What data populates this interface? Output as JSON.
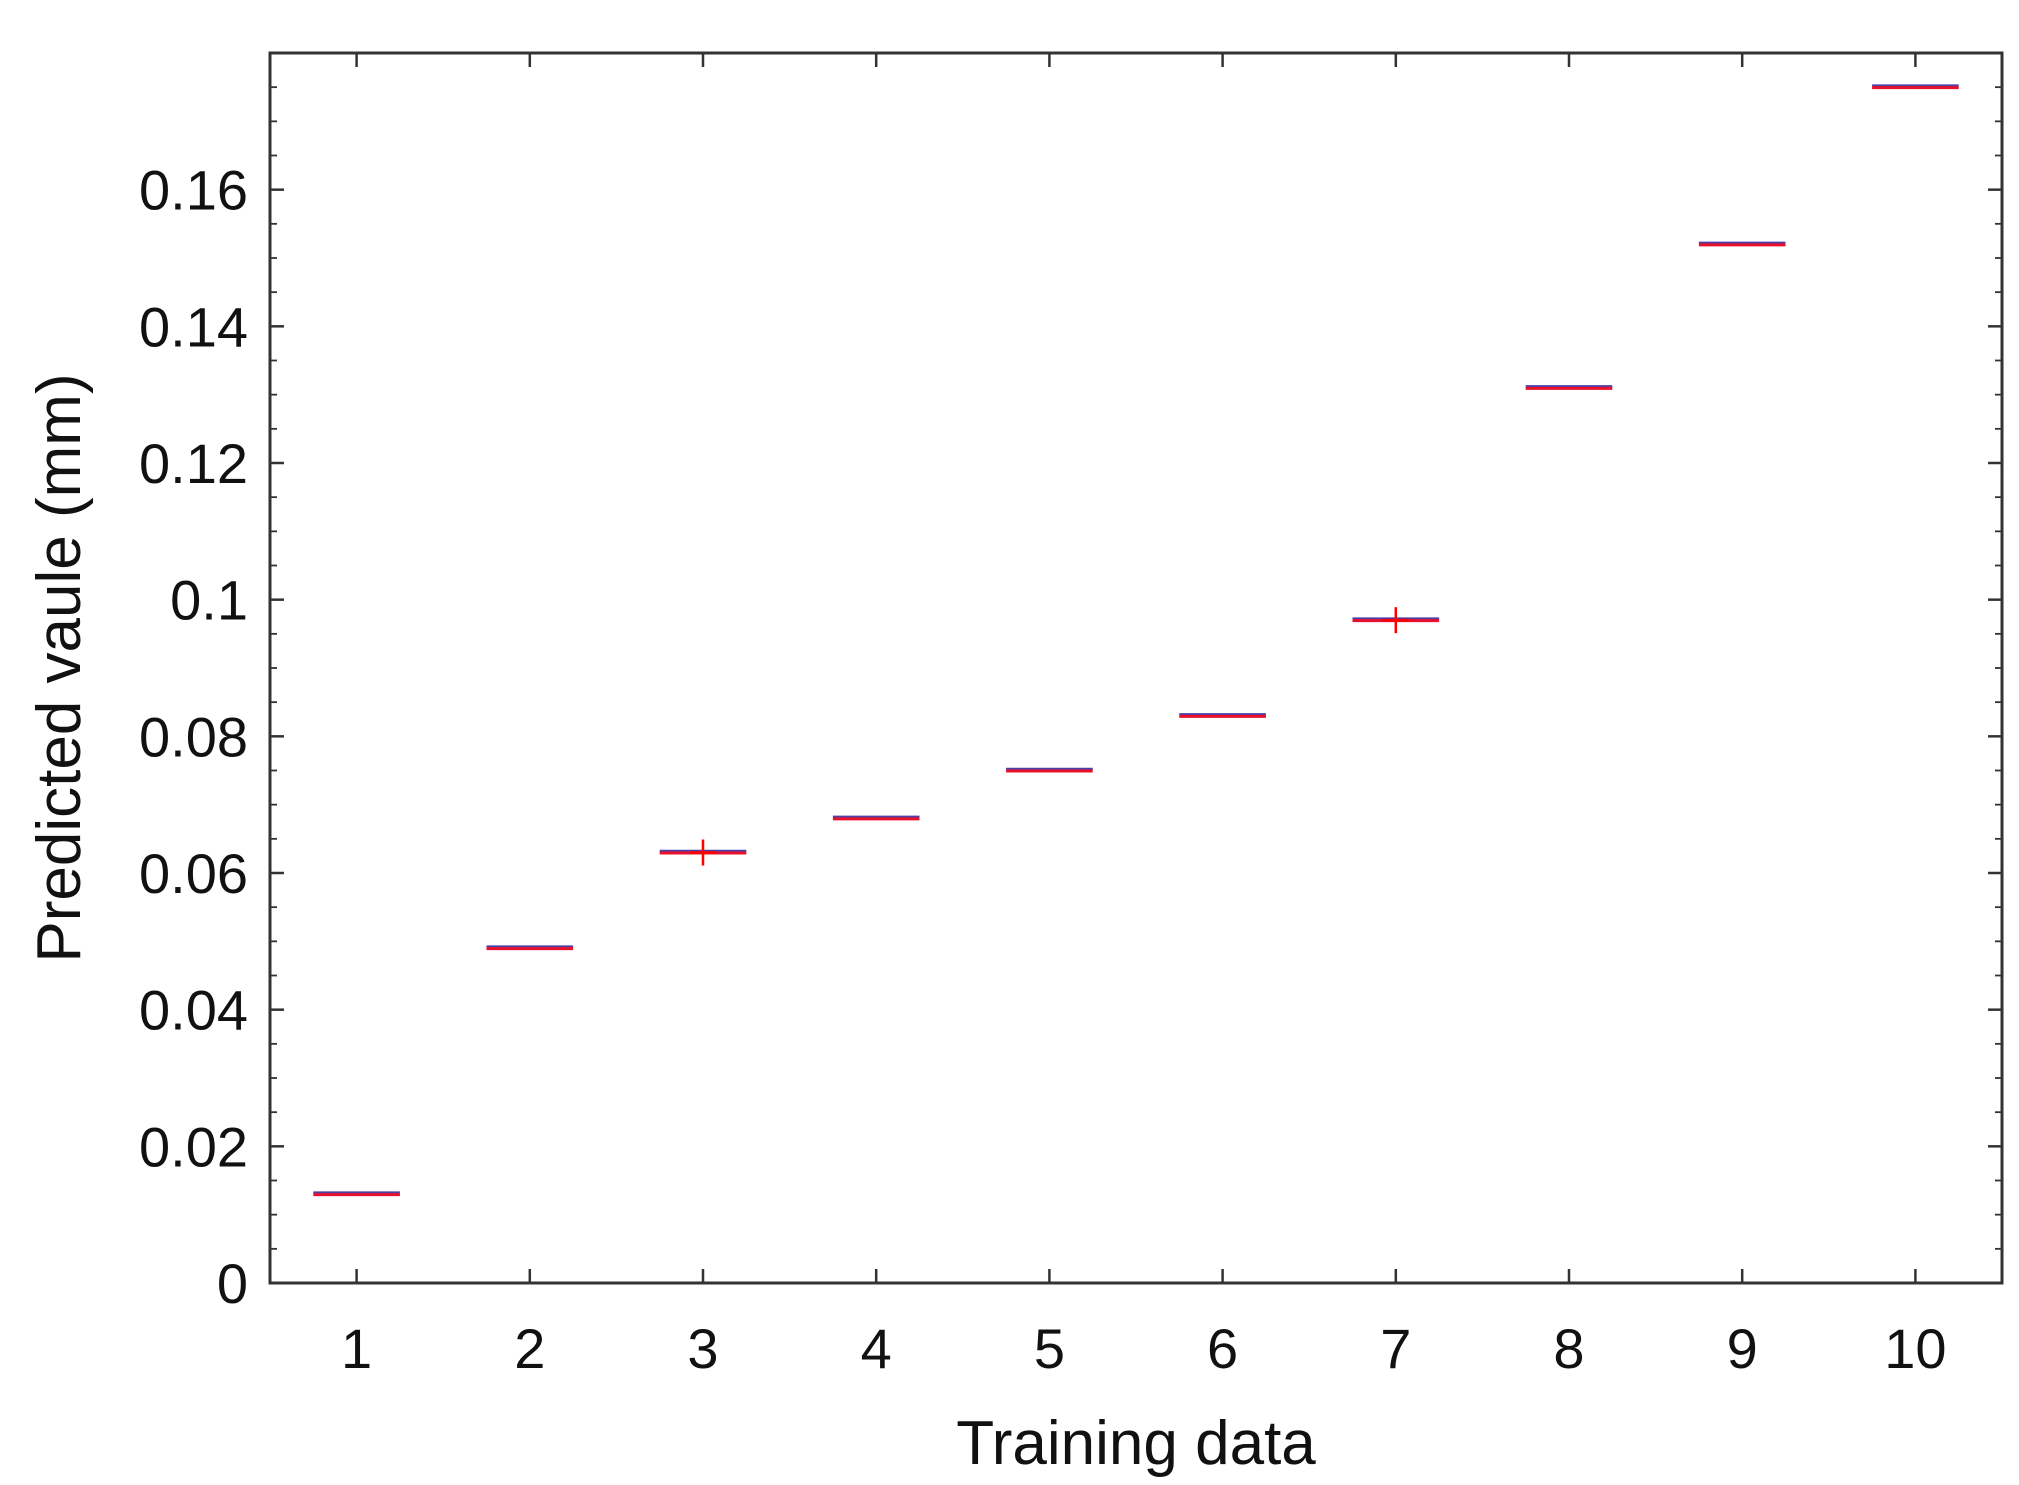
{
  "chart_data": {
    "type": "box",
    "title": "",
    "xlabel": "Training data",
    "ylabel": "Predicted vaule (mm)",
    "categories": [
      "1",
      "2",
      "3",
      "4",
      "5",
      "6",
      "7",
      "8",
      "9",
      "10"
    ],
    "values": [
      0.013,
      0.049,
      0.063,
      0.068,
      0.075,
      0.083,
      0.097,
      0.131,
      0.152,
      0.175
    ],
    "outliers": [
      {
        "category": "3",
        "value": 0.063
      },
      {
        "category": "7",
        "value": 0.097
      }
    ],
    "ylim": [
      0,
      0.18
    ],
    "xlim": [
      0.5,
      10.5
    ],
    "yticks": [
      0,
      0.02,
      0.04,
      0.06,
      0.08,
      0.1,
      0.12,
      0.14,
      0.16
    ],
    "ytick_labels": [
      "0",
      "0.02",
      "0.04",
      "0.06",
      "0.08",
      "0.1",
      "0.12",
      "0.14",
      "0.16"
    ],
    "grid": false,
    "colors": {
      "median": "#e8102a",
      "box": "#4b3fa8",
      "outlier": "#ff0000",
      "axes": "#333333"
    }
  }
}
